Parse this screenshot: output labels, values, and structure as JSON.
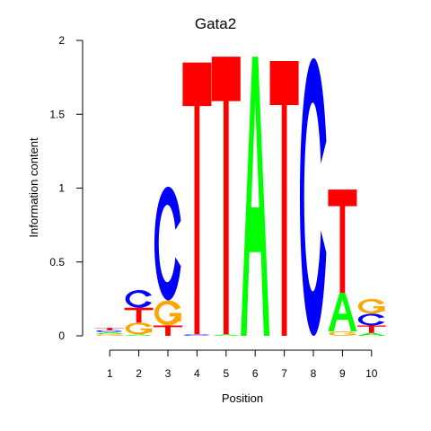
{
  "chart_data": {
    "type": "sequence-logo",
    "title": "Gata2",
    "xlabel": "Position",
    "ylabel": "Information content",
    "ylim": [
      0,
      2
    ],
    "y_ticks": [
      "0",
      "0.5",
      "1",
      "1.5",
      "2"
    ],
    "y_tick_values": [
      0,
      0.5,
      1,
      1.5,
      2
    ],
    "positions": [
      "1",
      "2",
      "3",
      "4",
      "5",
      "6",
      "7",
      "8",
      "9",
      "10"
    ],
    "colors": {
      "A": "#00ff00",
      "C": "#0000ff",
      "G": "#ffa500",
      "T": "#ff0000"
    },
    "letters": [
      [
        {
          "b": "G",
          "v": 0.012
        },
        {
          "b": "A",
          "v": 0.012
        },
        {
          "b": "C",
          "v": 0.015
        },
        {
          "b": "T",
          "v": 0.015
        }
      ],
      [
        {
          "b": "A",
          "v": 0.01
        },
        {
          "b": "G",
          "v": 0.08
        },
        {
          "b": "T",
          "v": 0.1
        },
        {
          "b": "C",
          "v": 0.12
        }
      ],
      [
        {
          "b": "T",
          "v": 0.07
        },
        {
          "b": "G",
          "v": 0.17
        },
        {
          "b": "C",
          "v": 0.77
        }
      ],
      [
        {
          "b": "C",
          "v": 0.01
        },
        {
          "b": "T",
          "v": 1.84
        }
      ],
      [
        {
          "b": "A",
          "v": 0.01
        },
        {
          "b": "T",
          "v": 1.88
        }
      ],
      [
        {
          "b": "A",
          "v": 1.89
        }
      ],
      [
        {
          "b": "T",
          "v": 1.86
        }
      ],
      [
        {
          "b": "C",
          "v": 1.88
        }
      ],
      [
        {
          "b": "G",
          "v": 0.03
        },
        {
          "b": "A",
          "v": 0.26
        },
        {
          "b": "T",
          "v": 0.7
        }
      ],
      [
        {
          "b": "A",
          "v": 0.02
        },
        {
          "b": "T",
          "v": 0.05
        },
        {
          "b": "C",
          "v": 0.08
        },
        {
          "b": "G",
          "v": 0.1
        }
      ]
    ]
  }
}
